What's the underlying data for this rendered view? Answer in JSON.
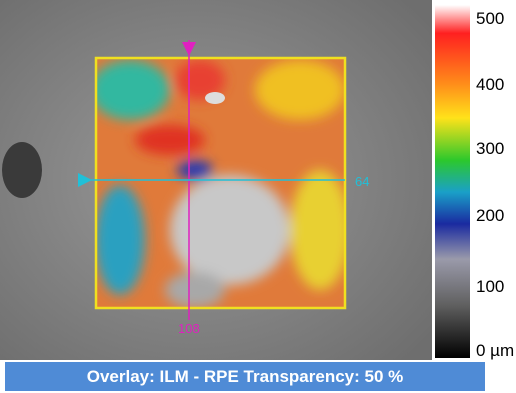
{
  "colorbar": {
    "labels": [
      "500",
      "400",
      "300",
      "200",
      "100",
      "0 µm"
    ]
  },
  "markers": {
    "horizontal": "64",
    "vertical": "108"
  },
  "status_bar": {
    "text": "Overlay: ILM - RPE  Transparency: 50 %"
  }
}
